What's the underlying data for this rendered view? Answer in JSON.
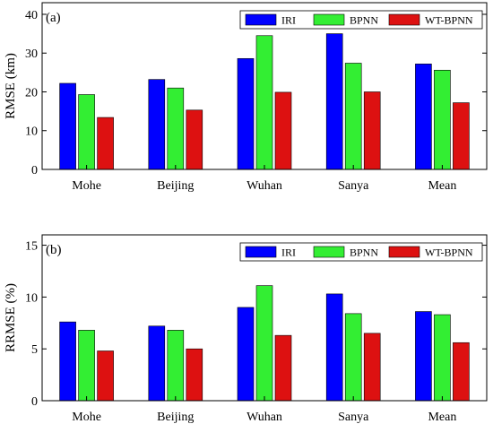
{
  "colors": {
    "IRI": "#0000ff",
    "BPNN": "#33ee33",
    "WT-BPNN": "#dd1111",
    "axis": "#000000",
    "background": "#ffffff"
  },
  "chart_data": [
    {
      "type": "bar",
      "panel_tag": "(a)",
      "categories": [
        "Mohe",
        "Beijing",
        "Wuhan",
        "Sanya",
        "Mean"
      ],
      "series": [
        {
          "name": "IRI",
          "values": [
            22.2,
            23.2,
            28.6,
            35.0,
            27.2
          ]
        },
        {
          "name": "BPNN",
          "values": [
            19.3,
            21.0,
            34.5,
            27.4,
            25.6
          ]
        },
        {
          "name": "WT-BPNN",
          "values": [
            13.4,
            15.3,
            19.9,
            20.0,
            17.2
          ]
        }
      ],
      "ylabel": "RMSE (km)",
      "ylim": [
        0,
        43
      ],
      "yticks": [
        0,
        10,
        20,
        30,
        40
      ],
      "grid": false,
      "legend_position": "top-right"
    },
    {
      "type": "bar",
      "panel_tag": "(b)",
      "categories": [
        "Mohe",
        "Beijing",
        "Wuhan",
        "Sanya",
        "Mean"
      ],
      "series": [
        {
          "name": "IRI",
          "values": [
            7.6,
            7.2,
            9.0,
            10.3,
            8.6
          ]
        },
        {
          "name": "BPNN",
          "values": [
            6.8,
            6.8,
            11.1,
            8.4,
            8.3
          ]
        },
        {
          "name": "WT-BPNN",
          "values": [
            4.8,
            5.0,
            6.3,
            6.5,
            5.6
          ]
        }
      ],
      "ylabel": "RRMSE (%)",
      "ylim": [
        0,
        16
      ],
      "yticks": [
        0,
        5,
        10,
        15
      ],
      "grid": false,
      "legend_position": "top-right"
    }
  ]
}
